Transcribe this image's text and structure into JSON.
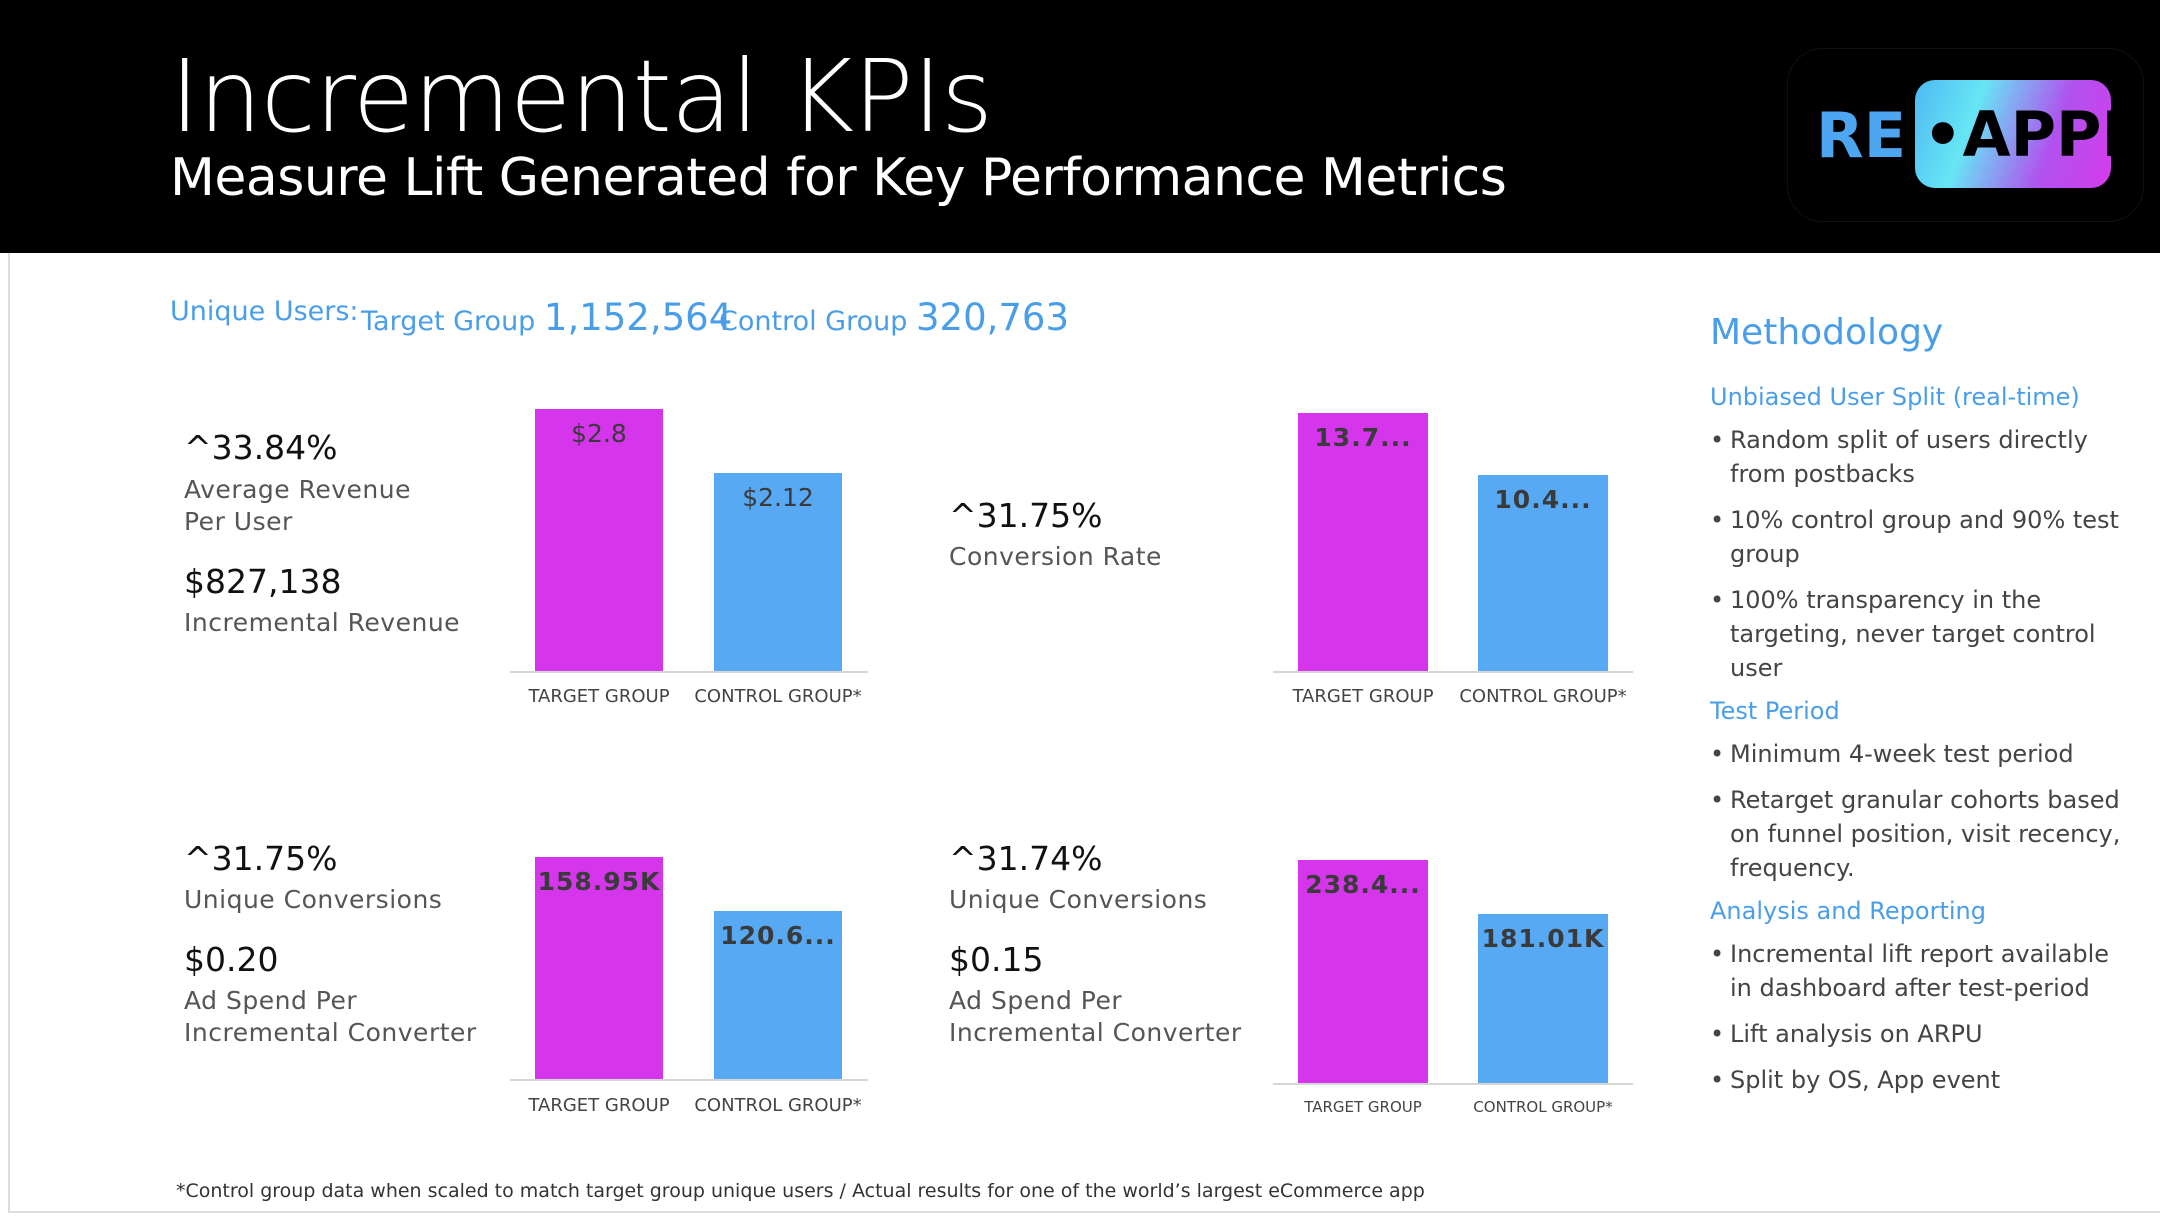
{
  "header": {
    "title": "Incremental KPIs",
    "subtitle": "Measure Lift Generated for Key Performance Metrics",
    "logo_text": "RE·APPI"
  },
  "users": {
    "label": "Unique Users:",
    "target_label": "Target Group",
    "target_value": "1,152,564",
    "control_label": "Control Group",
    "control_value": "320,763"
  },
  "kpis": [
    {
      "lift": "^33.84%",
      "label1": "Average Revenue",
      "label2": "Per User",
      "value": "$827,138",
      "value_label1": "Incremental Revenue",
      "value_label2": ""
    },
    {
      "lift": "^31.75%",
      "label1": "Conversion Rate",
      "label2": "",
      "value": "",
      "value_label1": "",
      "value_label2": ""
    },
    {
      "lift": "^31.75%",
      "label1": "Unique Conversions",
      "label2": "",
      "value": "$0.20",
      "value_label1": "Ad Spend Per",
      "value_label2": "Incremental Converter"
    },
    {
      "lift": "^31.74%",
      "label1": "Unique Conversions",
      "label2": "",
      "value": "$0.15",
      "value_label1": "Ad Spend Per",
      "value_label2": "Incremental Converter"
    }
  ],
  "chart_data": [
    {
      "type": "bar",
      "categories": [
        "TARGET GROUP",
        "CONTROL GROUP*"
      ],
      "values": [
        2.8,
        2.12
      ],
      "data_labels": [
        "$2.8",
        "$2.12"
      ],
      "colors": [
        "#d536eb",
        "#58a9f3"
      ],
      "grid": false
    },
    {
      "type": "bar",
      "categories": [
        "TARGET GROUP",
        "CONTROL GROUP*"
      ],
      "values": [
        13.7,
        10.4
      ],
      "data_labels": [
        "13.7...",
        "10.4..."
      ],
      "colors": [
        "#d536eb",
        "#58a9f3"
      ],
      "grid": false
    },
    {
      "type": "bar",
      "categories": [
        "TARGET GROUP",
        "CONTROL GROUP*"
      ],
      "values": [
        158.95,
        120.6
      ],
      "data_labels": [
        "158.95K",
        "120.6..."
      ],
      "colors": [
        "#d536eb",
        "#58a9f3"
      ],
      "grid": false
    },
    {
      "type": "bar",
      "categories": [
        "TARGET GROUP",
        "CONTROL GROUP*"
      ],
      "values": [
        238.4,
        181.01
      ],
      "data_labels": [
        "238.4...",
        "181.01K"
      ],
      "colors": [
        "#d536eb",
        "#58a9f3"
      ],
      "grid": false
    }
  ],
  "methodology": {
    "title": "Methodology",
    "sections": [
      {
        "heading": "Unbiased User Split (real-time)",
        "bullets": [
          "Random split of users directly from postbacks",
          "10% control group and 90% test group",
          "100% transparency in the targeting, never target control user"
        ]
      },
      {
        "heading": "Test Period",
        "bullets": [
          "Minimum 4-week test period",
          "Retarget granular cohorts based on funnel position, visit recency, frequency."
        ]
      },
      {
        "heading": "Analysis and Reporting",
        "bullets": [
          "Incremental lift report available in dashboard after test-period",
          "Lift analysis on ARPU",
          "Split by OS, App event"
        ]
      }
    ]
  },
  "footer": "*Control group data when scaled to match target group unique users  /   Actual results for one of the world’s largest eCommerce app"
}
